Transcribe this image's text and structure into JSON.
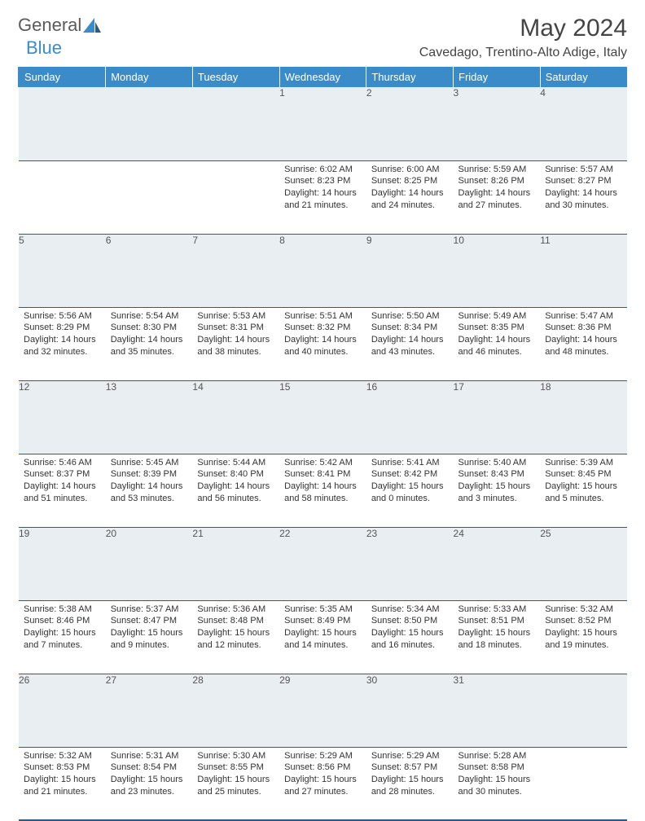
{
  "brand": {
    "part1": "General",
    "part2": "Blue"
  },
  "title": "May 2024",
  "location": "Cavedago, Trentino-Alto Adige, Italy",
  "colors": {
    "header_bg": "#3b8bc9",
    "header_text": "#ffffff",
    "daynum_bg": "#e9eef3",
    "border": "#2d5b85",
    "body_text": "#333333"
  },
  "typography": {
    "title_size_pt": 22,
    "location_size_pt": 12,
    "header_size_pt": 10,
    "cell_size_pt": 8
  },
  "weekdays": [
    "Sunday",
    "Monday",
    "Tuesday",
    "Wednesday",
    "Thursday",
    "Friday",
    "Saturday"
  ],
  "weeks": [
    {
      "nums": [
        "",
        "",
        "",
        "1",
        "2",
        "3",
        "4"
      ],
      "cells": [
        {
          "sunrise": "",
          "sunset": "",
          "daylight": ""
        },
        {
          "sunrise": "",
          "sunset": "",
          "daylight": ""
        },
        {
          "sunrise": "",
          "sunset": "",
          "daylight": ""
        },
        {
          "sunrise": "Sunrise: 6:02 AM",
          "sunset": "Sunset: 8:23 PM",
          "daylight": "Daylight: 14 hours and 21 minutes."
        },
        {
          "sunrise": "Sunrise: 6:00 AM",
          "sunset": "Sunset: 8:25 PM",
          "daylight": "Daylight: 14 hours and 24 minutes."
        },
        {
          "sunrise": "Sunrise: 5:59 AM",
          "sunset": "Sunset: 8:26 PM",
          "daylight": "Daylight: 14 hours and 27 minutes."
        },
        {
          "sunrise": "Sunrise: 5:57 AM",
          "sunset": "Sunset: 8:27 PM",
          "daylight": "Daylight: 14 hours and 30 minutes."
        }
      ]
    },
    {
      "nums": [
        "5",
        "6",
        "7",
        "8",
        "9",
        "10",
        "11"
      ],
      "cells": [
        {
          "sunrise": "Sunrise: 5:56 AM",
          "sunset": "Sunset: 8:29 PM",
          "daylight": "Daylight: 14 hours and 32 minutes."
        },
        {
          "sunrise": "Sunrise: 5:54 AM",
          "sunset": "Sunset: 8:30 PM",
          "daylight": "Daylight: 14 hours and 35 minutes."
        },
        {
          "sunrise": "Sunrise: 5:53 AM",
          "sunset": "Sunset: 8:31 PM",
          "daylight": "Daylight: 14 hours and 38 minutes."
        },
        {
          "sunrise": "Sunrise: 5:51 AM",
          "sunset": "Sunset: 8:32 PM",
          "daylight": "Daylight: 14 hours and 40 minutes."
        },
        {
          "sunrise": "Sunrise: 5:50 AM",
          "sunset": "Sunset: 8:34 PM",
          "daylight": "Daylight: 14 hours and 43 minutes."
        },
        {
          "sunrise": "Sunrise: 5:49 AM",
          "sunset": "Sunset: 8:35 PM",
          "daylight": "Daylight: 14 hours and 46 minutes."
        },
        {
          "sunrise": "Sunrise: 5:47 AM",
          "sunset": "Sunset: 8:36 PM",
          "daylight": "Daylight: 14 hours and 48 minutes."
        }
      ]
    },
    {
      "nums": [
        "12",
        "13",
        "14",
        "15",
        "16",
        "17",
        "18"
      ],
      "cells": [
        {
          "sunrise": "Sunrise: 5:46 AM",
          "sunset": "Sunset: 8:37 PM",
          "daylight": "Daylight: 14 hours and 51 minutes."
        },
        {
          "sunrise": "Sunrise: 5:45 AM",
          "sunset": "Sunset: 8:39 PM",
          "daylight": "Daylight: 14 hours and 53 minutes."
        },
        {
          "sunrise": "Sunrise: 5:44 AM",
          "sunset": "Sunset: 8:40 PM",
          "daylight": "Daylight: 14 hours and 56 minutes."
        },
        {
          "sunrise": "Sunrise: 5:42 AM",
          "sunset": "Sunset: 8:41 PM",
          "daylight": "Daylight: 14 hours and 58 minutes."
        },
        {
          "sunrise": "Sunrise: 5:41 AM",
          "sunset": "Sunset: 8:42 PM",
          "daylight": "Daylight: 15 hours and 0 minutes."
        },
        {
          "sunrise": "Sunrise: 5:40 AM",
          "sunset": "Sunset: 8:43 PM",
          "daylight": "Daylight: 15 hours and 3 minutes."
        },
        {
          "sunrise": "Sunrise: 5:39 AM",
          "sunset": "Sunset: 8:45 PM",
          "daylight": "Daylight: 15 hours and 5 minutes."
        }
      ]
    },
    {
      "nums": [
        "19",
        "20",
        "21",
        "22",
        "23",
        "24",
        "25"
      ],
      "cells": [
        {
          "sunrise": "Sunrise: 5:38 AM",
          "sunset": "Sunset: 8:46 PM",
          "daylight": "Daylight: 15 hours and 7 minutes."
        },
        {
          "sunrise": "Sunrise: 5:37 AM",
          "sunset": "Sunset: 8:47 PM",
          "daylight": "Daylight: 15 hours and 9 minutes."
        },
        {
          "sunrise": "Sunrise: 5:36 AM",
          "sunset": "Sunset: 8:48 PM",
          "daylight": "Daylight: 15 hours and 12 minutes."
        },
        {
          "sunrise": "Sunrise: 5:35 AM",
          "sunset": "Sunset: 8:49 PM",
          "daylight": "Daylight: 15 hours and 14 minutes."
        },
        {
          "sunrise": "Sunrise: 5:34 AM",
          "sunset": "Sunset: 8:50 PM",
          "daylight": "Daylight: 15 hours and 16 minutes."
        },
        {
          "sunrise": "Sunrise: 5:33 AM",
          "sunset": "Sunset: 8:51 PM",
          "daylight": "Daylight: 15 hours and 18 minutes."
        },
        {
          "sunrise": "Sunrise: 5:32 AM",
          "sunset": "Sunset: 8:52 PM",
          "daylight": "Daylight: 15 hours and 19 minutes."
        }
      ]
    },
    {
      "nums": [
        "26",
        "27",
        "28",
        "29",
        "30",
        "31",
        ""
      ],
      "cells": [
        {
          "sunrise": "Sunrise: 5:32 AM",
          "sunset": "Sunset: 8:53 PM",
          "daylight": "Daylight: 15 hours and 21 minutes."
        },
        {
          "sunrise": "Sunrise: 5:31 AM",
          "sunset": "Sunset: 8:54 PM",
          "daylight": "Daylight: 15 hours and 23 minutes."
        },
        {
          "sunrise": "Sunrise: 5:30 AM",
          "sunset": "Sunset: 8:55 PM",
          "daylight": "Daylight: 15 hours and 25 minutes."
        },
        {
          "sunrise": "Sunrise: 5:29 AM",
          "sunset": "Sunset: 8:56 PM",
          "daylight": "Daylight: 15 hours and 27 minutes."
        },
        {
          "sunrise": "Sunrise: 5:29 AM",
          "sunset": "Sunset: 8:57 PM",
          "daylight": "Daylight: 15 hours and 28 minutes."
        },
        {
          "sunrise": "Sunrise: 5:28 AM",
          "sunset": "Sunset: 8:58 PM",
          "daylight": "Daylight: 15 hours and 30 minutes."
        },
        {
          "sunrise": "",
          "sunset": "",
          "daylight": ""
        }
      ]
    }
  ]
}
